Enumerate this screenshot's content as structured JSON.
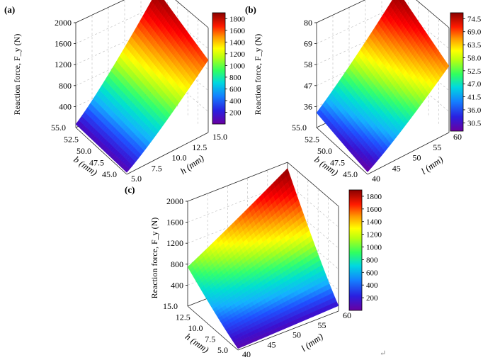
{
  "figure": {
    "return_mark": "↵"
  },
  "colormap": [
    "#6a00a0",
    "#3a10d0",
    "#1f4fff",
    "#14b0ff",
    "#00e0d0",
    "#30ff70",
    "#a0ff20",
    "#ffff00",
    "#ffb000",
    "#ff5a00",
    "#ff0000",
    "#c00000",
    "#900000"
  ],
  "chart_data": [
    {
      "panel": "(a)",
      "type": "surface",
      "ylabel": "Reaction force, F_y (N)",
      "zaxis": {
        "ticks": [
          "2000",
          "1600",
          "1200",
          "800",
          "400"
        ],
        "range": [
          0,
          2000
        ]
      },
      "left_axis": {
        "label": "b (mm)",
        "ticks": [
          "55.0",
          "52.5",
          "50.0",
          "47.5",
          "45.0"
        ]
      },
      "right_axis": {
        "label": "h (mm)",
        "ticks": [
          "5.0",
          "7.5",
          "10.0",
          "12.5",
          "15.0"
        ]
      },
      "colorbar": {
        "ticks": [
          "1800",
          "1600",
          "1400",
          "1200",
          "1000",
          "800",
          "600",
          "400",
          "200"
        ],
        "range": [
          0,
          1900
        ]
      },
      "surface_corners": {
        "back": 1900,
        "left": 100,
        "right": 1450,
        "front": 60
      }
    },
    {
      "panel": "(b)",
      "type": "surface",
      "ylabel": "Reaction force, F_y (N)",
      "zaxis": {
        "ticks": [
          "80",
          "69",
          "58",
          "47",
          "36"
        ],
        "range": [
          25,
          80
        ]
      },
      "left_axis": {
        "label": "b (mm)",
        "ticks": [
          "55.0",
          "52.5",
          "50.0",
          "47.5",
          "45.0"
        ]
      },
      "right_axis": {
        "label": "l (mm)",
        "ticks": [
          "40",
          "45",
          "50",
          "55",
          "60"
        ]
      },
      "colorbar": {
        "ticks": [
          "74.5",
          "69.0",
          "63.5",
          "58.0",
          "52.5",
          "47.0",
          "41.5",
          "36.0",
          "30.5"
        ],
        "range": [
          27,
          77
        ]
      },
      "surface_corners": {
        "back": 77,
        "left": 35,
        "right": 62,
        "front": 27
      }
    },
    {
      "panel": "(c)",
      "type": "surface",
      "ylabel": "Reaction force, F_y (N)",
      "zaxis": {
        "ticks": [
          "2000",
          "1600",
          "1200",
          "800",
          "400"
        ],
        "range": [
          0,
          2000
        ]
      },
      "left_axis": {
        "label": "h (mm)",
        "ticks": [
          "15.0",
          "12.5",
          "10.0",
          "7.5",
          "5.0"
        ]
      },
      "right_axis": {
        "label": "l (mm)",
        "ticks": [
          "40",
          "45",
          "50",
          "55",
          "60"
        ]
      },
      "colorbar": {
        "ticks": [
          "1800",
          "1600",
          "1400",
          "1200",
          "1000",
          "800",
          "600",
          "400",
          "200"
        ],
        "range": [
          0,
          1900
        ]
      },
      "surface_corners": {
        "back": 1900,
        "left": 850,
        "right": 150,
        "front": 50
      }
    }
  ]
}
